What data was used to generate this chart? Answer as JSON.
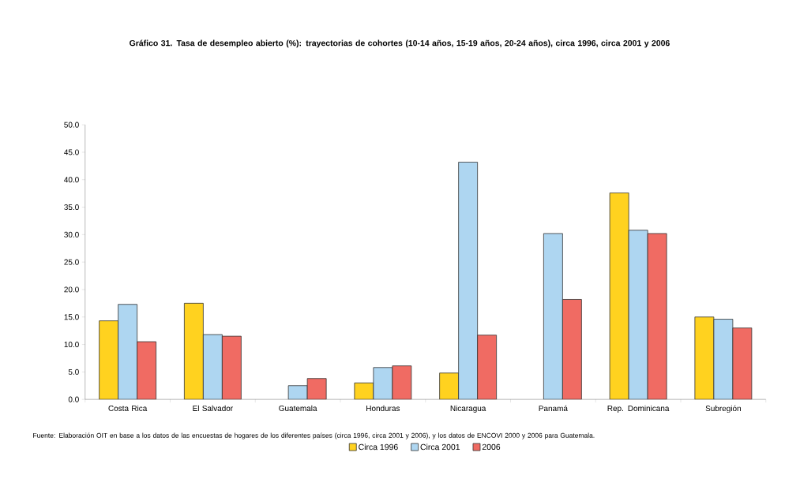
{
  "chart_data": {
    "type": "bar",
    "title": "Gráfico 31. Tasa de desempleo abierto (%): trayectorias de cohortes (10-14 años, 15-19 años, 20-24 años), circa 1996, circa 2001 y 2006",
    "categories": [
      "Costa Rica",
      "El Salvador",
      "Guatemala",
      "Honduras",
      "Nicaragua",
      "Panamá",
      "Rep. Dominicana",
      "Subregión"
    ],
    "series": [
      {
        "name": "Circa 1996",
        "color": "#ffd21f",
        "values": [
          14.3,
          17.5,
          null,
          3.0,
          4.8,
          null,
          37.6,
          15.0
        ]
      },
      {
        "name": "Circa 2001",
        "color": "#aed6f1",
        "values": [
          17.3,
          11.8,
          2.5,
          5.8,
          43.2,
          30.2,
          30.8,
          14.6
        ]
      },
      {
        "name": "2006",
        "color": "#f06b63",
        "values": [
          10.5,
          11.5,
          3.8,
          6.1,
          11.7,
          18.2,
          30.2,
          13.0
        ]
      }
    ],
    "ylim": [
      0,
      50
    ],
    "yticks": [
      {
        "value": 0,
        "label": "0.0"
      },
      {
        "value": 5,
        "label": "5.0"
      },
      {
        "value": 10,
        "label": "10.0"
      },
      {
        "value": 15,
        "label": "15.0"
      },
      {
        "value": 20,
        "label": "20.0"
      },
      {
        "value": 25,
        "label": "25.0"
      },
      {
        "value": 30,
        "label": "30.0"
      },
      {
        "value": 35,
        "label": "35.0"
      },
      {
        "value": 40,
        "label": "40.0"
      },
      {
        "value": 45,
        "label": "45.0"
      },
      {
        "value": 50,
        "label": "50.0"
      }
    ],
    "legend": "bottom",
    "annotations": [
      "Fuente: Elaboración OIT en base a los datos de las encuestas de hogares de los diferentes países (circa 1996, circa 2001 y 2006), y los datos de ENCOVI 2000 y 2006 para Guatemala."
    ]
  }
}
